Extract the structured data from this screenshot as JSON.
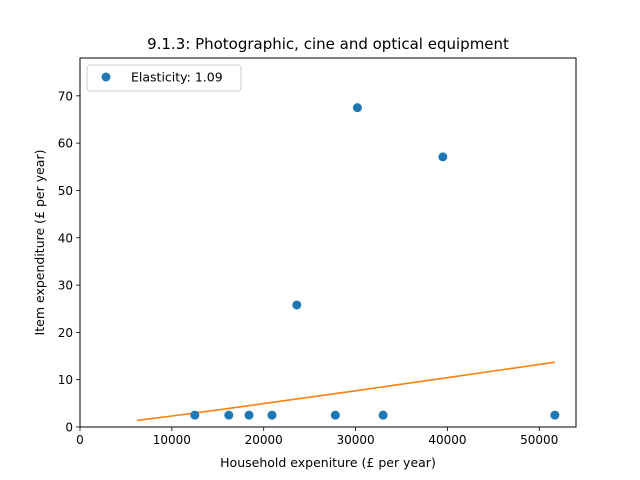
{
  "chart_data": {
    "type": "scatter",
    "title": "9.1.3: Photographic, cine and optical equipment",
    "xlabel": "Household expeniture (£ per year)",
    "ylabel": "Item expenditure (£ per year)",
    "xlim": [
      0,
      54000
    ],
    "ylim": [
      0,
      78
    ],
    "xticks": [
      0,
      10000,
      20000,
      30000,
      40000,
      50000
    ],
    "yticks": [
      0,
      10,
      20,
      30,
      40,
      50,
      60,
      70
    ],
    "legend_position": "upper-left",
    "grid": false,
    "series": [
      {
        "name": "Elasticity: 1.09",
        "type": "scatter",
        "color": "#1f77b4",
        "x": [
          12500,
          16200,
          18400,
          20900,
          23600,
          27800,
          30200,
          33000,
          39500,
          51700
        ],
        "y": [
          2.5,
          2.5,
          2.5,
          2.5,
          25.8,
          2.5,
          67.5,
          2.5,
          57.1,
          2.5
        ]
      },
      {
        "type": "line",
        "color": "#ff7f0e",
        "x": [
          6200,
          10000,
          15000,
          20000,
          25000,
          30000,
          35000,
          40000,
          45000,
          51700
        ],
        "y": [
          1.4,
          2.33,
          3.61,
          4.94,
          6.29,
          7.65,
          9.04,
          10.43,
          11.84,
          13.7
        ]
      }
    ]
  }
}
